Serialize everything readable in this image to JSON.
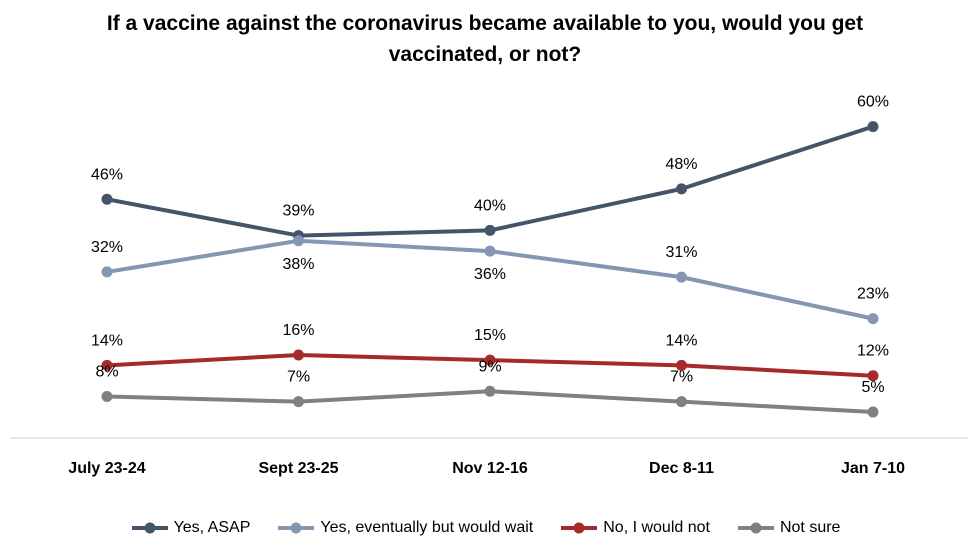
{
  "chart_data": {
    "type": "line",
    "title": "If a vaccine against the coronavirus became available to you, would you get vaccinated, or not?",
    "categories": [
      "July 23-24",
      "Sept 23-25",
      "Nov 12-16",
      "Dec 8-11",
      "Jan 7-10"
    ],
    "value_suffix": "%",
    "ylim": [
      0,
      70
    ],
    "grid": false,
    "legend_position": "bottom",
    "series": [
      {
        "name": "Yes, ASAP",
        "color": "#44546a",
        "values": [
          46,
          39,
          40,
          48,
          60
        ],
        "label_side": [
          "above",
          "above",
          "above",
          "above",
          "above"
        ]
      },
      {
        "name": "Yes, eventually but would wait",
        "color": "#8497b0",
        "values": [
          32,
          38,
          36,
          31,
          23
        ],
        "label_side": [
          "above",
          "below",
          "below",
          "above",
          "above"
        ]
      },
      {
        "name": "No, I would not",
        "color": "#a52a2a",
        "values": [
          14,
          16,
          15,
          14,
          12
        ],
        "label_side": [
          "above",
          "above",
          "above",
          "above",
          "above"
        ]
      },
      {
        "name": "Not sure",
        "color": "#808080",
        "values": [
          8,
          7,
          9,
          7,
          5
        ],
        "label_side": [
          "above",
          "above",
          "above",
          "above",
          "above"
        ]
      }
    ]
  }
}
